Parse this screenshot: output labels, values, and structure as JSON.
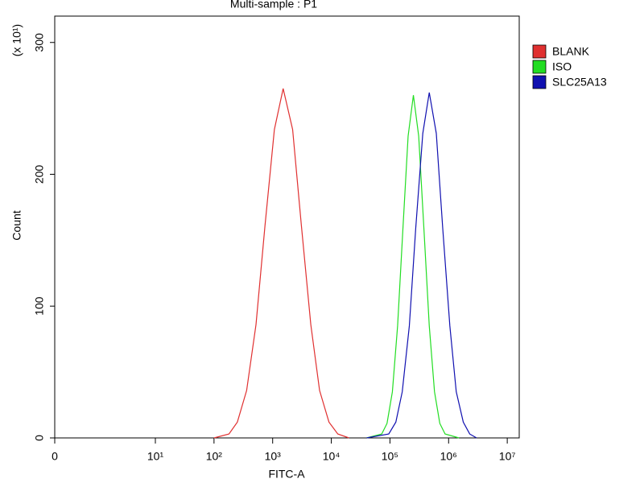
{
  "chart_data": {
    "type": "line",
    "title": "Multi-sample : P1",
    "x_label": "FITC-A",
    "y_label": "Count",
    "y_unit": "(x 10¹)",
    "xscale": "biexponential",
    "xlim": [
      0,
      16000000
    ],
    "ylim": [
      0,
      320
    ],
    "xticks": [
      0,
      {
        "value": 10,
        "label": "10¹"
      },
      {
        "value": 100,
        "label": "10²"
      },
      {
        "value": 1000,
        "label": "10³"
      },
      {
        "value": 10000,
        "label": "10⁴"
      },
      {
        "value": 100000,
        "label": "10⁵"
      },
      {
        "value": 1000000,
        "label": "10⁶"
      },
      {
        "value": 10000000,
        "label": "10⁷"
      }
    ],
    "yticks": [
      0,
      100,
      200,
      300
    ],
    "legend": "right",
    "series": [
      {
        "name": "BLANK",
        "color": "#e03030",
        "x": [
          100,
          180,
          250,
          360,
          520,
          740,
          1070,
          1510,
          2190,
          3090,
          4470,
          6310,
          9120,
          12900,
          20000
        ],
        "values": [
          0,
          3,
          12,
          36,
          86,
          161,
          234,
          265,
          234,
          161,
          86,
          36,
          12,
          3,
          0
        ]
      },
      {
        "name": "ISO",
        "color": "#22dd22",
        "x": [
          40000,
          72400,
          89100,
          110000,
          135000,
          166000,
          204000,
          251000,
          309000,
          380000,
          468000,
          575000,
          708000,
          871000,
          1500000
        ],
        "values": [
          0,
          3,
          11,
          35,
          85,
          158,
          229,
          260,
          229,
          158,
          85,
          35,
          11,
          3,
          0
        ]
      },
      {
        "name": "SLC25A13",
        "color": "#1010b0",
        "x": [
          40000,
          95500,
          126000,
          162000,
          214000,
          275000,
          363000,
          468000,
          617000,
          794000,
          1050000,
          1350000,
          1780000,
          2290000,
          3000000
        ],
        "values": [
          0,
          3,
          12,
          35,
          85,
          159,
          231,
          262,
          231,
          159,
          85,
          35,
          12,
          3,
          0
        ]
      }
    ]
  }
}
